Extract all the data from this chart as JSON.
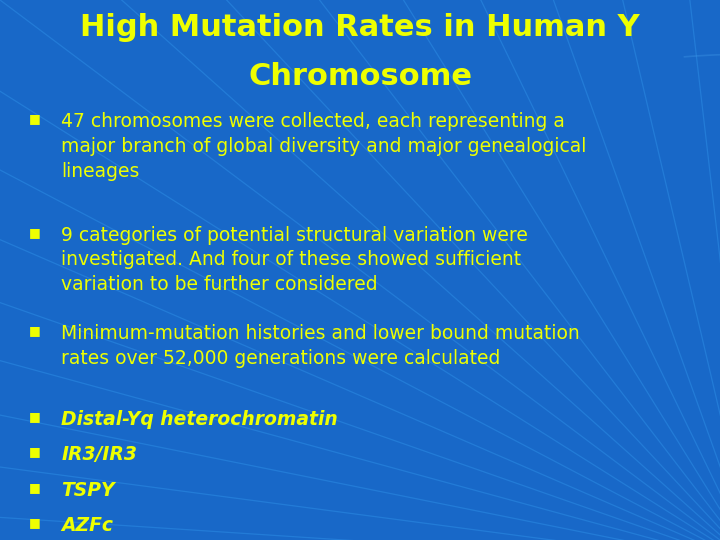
{
  "title_line1": "High Mutation Rates in Human Y",
  "title_line2": "Chromosome",
  "title_color": "#EEFF00",
  "title_fontsize": 22,
  "background_color": "#1868C8",
  "bullet_color": "#EEFF00",
  "bullet_fontsize": 13.5,
  "bullets": [
    "47 chromosomes were collected, each representing a\nmajor branch of global diversity and major genealogical\nlineages",
    "9 categories of potential structural variation were\ninvestigated. And four of these showed sufficient\nvariation to be further considered",
    "Minimum-mutation histories and lower bound mutation\nrates over 52,000 generations were calculated"
  ],
  "italic_bullets": [
    "Distal-Yq heterochromatin",
    "IR3/IR3",
    "TSPY",
    "AZFc"
  ],
  "figsize": [
    7.2,
    5.4
  ],
  "dpi": 100
}
